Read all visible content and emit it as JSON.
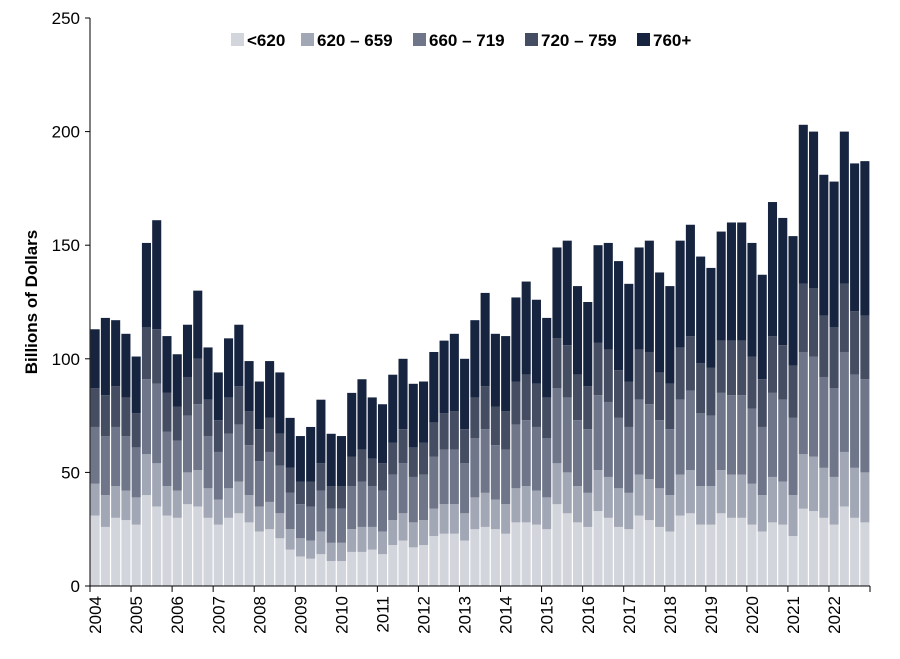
{
  "chart_data": {
    "type": "stacked_bar",
    "ylabel": "Billions of Dollars",
    "categories": [
      "2004",
      null,
      null,
      null,
      "2005",
      null,
      null,
      null,
      "2006",
      null,
      null,
      null,
      "2007",
      null,
      null,
      null,
      "2008",
      null,
      null,
      null,
      "2009",
      null,
      null,
      null,
      "2010",
      null,
      null,
      null,
      "2011",
      null,
      null,
      null,
      "2012",
      null,
      null,
      null,
      "2013",
      null,
      null,
      null,
      "2014",
      null,
      null,
      null,
      "2015",
      null,
      null,
      null,
      "2016",
      null,
      null,
      null,
      "2017",
      null,
      null,
      null,
      "2018",
      null,
      null,
      null,
      "2019",
      null,
      null,
      null,
      "2020",
      null,
      null,
      null,
      "2021",
      null,
      null,
      null,
      "2022",
      null,
      null,
      null
    ],
    "series": [
      {
        "name": "<620",
        "color": "#d3d5dc",
        "values": [
          31,
          26,
          30,
          29,
          27,
          40,
          35,
          31,
          30,
          36,
          35,
          30,
          27,
          30,
          32,
          28,
          24,
          25,
          21,
          16,
          13,
          12,
          14,
          11,
          11,
          15,
          15,
          16,
          14,
          18,
          20,
          17,
          18,
          22,
          23,
          23,
          20,
          25,
          26,
          25,
          23,
          28,
          28,
          27,
          25,
          36,
          32,
          28,
          26,
          33,
          30,
          26,
          25,
          31,
          29,
          26,
          24,
          31,
          32,
          27,
          27,
          32,
          30,
          30,
          27,
          24,
          28,
          27,
          22,
          34,
          33,
          30,
          27,
          35,
          30,
          28
        ]
      },
      {
        "name": "620 – 659",
        "color": "#a2a7b5",
        "values": [
          14,
          14,
          14,
          13,
          12,
          18,
          19,
          13,
          12,
          14,
          16,
          13,
          11,
          13,
          14,
          12,
          11,
          12,
          11,
          9,
          8,
          8,
          10,
          8,
          8,
          10,
          11,
          10,
          10,
          11,
          12,
          11,
          11,
          12,
          13,
          13,
          12,
          14,
          15,
          13,
          13,
          15,
          16,
          15,
          14,
          18,
          18,
          16,
          15,
          18,
          18,
          17,
          16,
          18,
          18,
          17,
          16,
          18,
          19,
          17,
          17,
          19,
          19,
          19,
          18,
          16,
          20,
          19,
          18,
          24,
          24,
          22,
          21,
          24,
          22,
          22
        ]
      },
      {
        "name": "660 – 719",
        "color": "#6f768a",
        "values": [
          25,
          26,
          26,
          24,
          22,
          33,
          35,
          24,
          22,
          25,
          29,
          23,
          21,
          24,
          25,
          22,
          20,
          22,
          21,
          16,
          15,
          15,
          18,
          15,
          15,
          19,
          20,
          18,
          18,
          20,
          22,
          20,
          20,
          23,
          24,
          24,
          22,
          26,
          28,
          24,
          24,
          28,
          29,
          28,
          26,
          33,
          33,
          29,
          28,
          33,
          33,
          31,
          29,
          33,
          33,
          30,
          29,
          33,
          35,
          32,
          31,
          34,
          35,
          35,
          33,
          30,
          37,
          36,
          34,
          45,
          44,
          40,
          39,
          44,
          41,
          41
        ]
      },
      {
        "name": "720 – 759",
        "color": "#454d63",
        "values": [
          17,
          18,
          18,
          17,
          15,
          23,
          24,
          17,
          15,
          17,
          20,
          16,
          14,
          16,
          17,
          15,
          14,
          15,
          14,
          11,
          10,
          11,
          12,
          10,
          10,
          13,
          14,
          12,
          12,
          14,
          15,
          13,
          14,
          15,
          16,
          17,
          15,
          18,
          19,
          17,
          17,
          19,
          20,
          19,
          18,
          22,
          23,
          20,
          19,
          23,
          23,
          21,
          20,
          22,
          23,
          21,
          20,
          23,
          24,
          22,
          21,
          23,
          24,
          24,
          23,
          21,
          25,
          24,
          23,
          30,
          30,
          27,
          27,
          30,
          28,
          28
        ]
      },
      {
        "name": "760+",
        "color": "#162440",
        "values": [
          26,
          34,
          29,
          28,
          25,
          37,
          48,
          25,
          23,
          23,
          30,
          23,
          21,
          26,
          27,
          22,
          21,
          25,
          27,
          22,
          20,
          24,
          28,
          23,
          22,
          28,
          31,
          27,
          26,
          30,
          31,
          28,
          27,
          31,
          32,
          34,
          31,
          34,
          41,
          32,
          33,
          37,
          41,
          37,
          35,
          40,
          46,
          39,
          37,
          43,
          47,
          48,
          43,
          45,
          49,
          44,
          43,
          47,
          49,
          47,
          44,
          48,
          52,
          52,
          50,
          46,
          59,
          56,
          57,
          70,
          69,
          62,
          64,
          67,
          65,
          68
        ]
      }
    ],
    "ylim": [
      0,
      250
    ],
    "yticks": [
      0,
      50,
      100,
      150,
      200,
      250
    ],
    "grid": false,
    "legend": "top"
  }
}
